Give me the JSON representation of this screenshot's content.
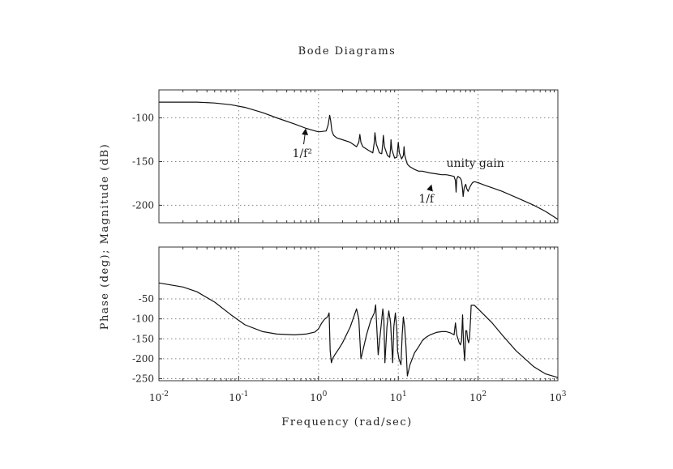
{
  "chart_data": {
    "type": "line",
    "title": "Bode Diagrams",
    "ylabel": "Phase (deg); Magnitude (dB)",
    "xlabel": "Frequency (rad/sec)",
    "x_scale": "log",
    "xlim": [
      0.01,
      1000
    ],
    "x_ticks": [
      {
        "value": 0.01,
        "base": "10",
        "exp": "-2"
      },
      {
        "value": 0.1,
        "base": "10",
        "exp": "-1"
      },
      {
        "value": 1,
        "base": "10",
        "exp": "0"
      },
      {
        "value": 10,
        "base": "10",
        "exp": "1"
      },
      {
        "value": 100,
        "base": "10",
        "exp": "2"
      },
      {
        "value": 1000,
        "base": "10",
        "exp": "3"
      }
    ],
    "grid": true,
    "panels": [
      {
        "name": "magnitude",
        "ylim": [
          -220,
          -68
        ],
        "yticks": [
          -100,
          -150,
          -200
        ],
        "ytick_labels": [
          "-100",
          "-150",
          "-200"
        ],
        "annotations": [
          {
            "text": "1/f²",
            "label_at": [
              0.47,
              -145
            ],
            "arrow_to": [
              0.69,
              -113
            ]
          },
          {
            "text": "1/f",
            "label_at": [
              18,
              -197
            ],
            "arrow_to": [
              26,
              -177
            ]
          },
          {
            "text": "unity  gain",
            "label_at": [
              40,
              -156
            ]
          }
        ],
        "series": [
          {
            "x": [
              0.01,
              0.02,
              0.03,
              0.05,
              0.08,
              0.12,
              0.2,
              0.3,
              0.5,
              0.7,
              1.0,
              1.25,
              1.32,
              1.38,
              1.42,
              1.47,
              1.55,
              1.7,
              2.0,
              2.5,
              3.0,
              3.2,
              3.3,
              3.4,
              3.6,
              4.2,
              4.8,
              5.0,
              5.1,
              5.3,
              5.8,
              6.2,
              6.4,
              6.5,
              6.7,
              7.3,
              7.8,
              8.0,
              8.1,
              8.3,
              9.0,
              9.6,
              9.8,
              10.0,
              10.3,
              11.0,
              11.6,
              11.8,
              12.0,
              12.5,
              13.0,
              14.0,
              16.0,
              18.0,
              20.0,
              25.0,
              30.0,
              35.0,
              40.0,
              45.0,
              50.0,
              52.0,
              53.0,
              54.0,
              56.0,
              60.0,
              62.0,
              64.0,
              65.0,
              67.0,
              70.0,
              72.0,
              75.0,
              80.0,
              85.0,
              90.0,
              100.0,
              120.0,
              150.0,
              200.0,
              300.0,
              500.0,
              700.0,
              1000.0
            ],
            "y": [
              -82,
              -82,
              -82,
              -83,
              -85,
              -88,
              -94,
              -100,
              -107,
              -112,
              -116,
              -115,
              -108,
              -97,
              -103,
              -115,
              -120,
              -123,
              -125,
              -128,
              -133,
              -128,
              -119,
              -128,
              -133,
              -137,
              -140,
              -128,
              -117,
              -130,
              -140,
              -141,
              -129,
              -120,
              -133,
              -143,
              -145,
              -135,
              -125,
              -136,
              -146,
              -145,
              -137,
              -128,
              -140,
              -147,
              -143,
              -133,
              -142,
              -148,
              -153,
              -156,
              -159,
              -161,
              -161,
              -163,
              -164,
              -165,
              -165,
              -166,
              -167,
              -172,
              -185,
              -170,
              -167,
              -169,
              -172,
              -182,
              -190,
              -180,
              -176,
              -181,
              -184,
              -178,
              -174,
              -173,
              -174,
              -177,
              -180,
              -184,
              -191,
              -200,
              -207,
              -216
            ]
          }
        ]
      },
      {
        "name": "phase",
        "ylim": [
          -255,
          80
        ],
        "yticks": [
          -50,
          -100,
          -150,
          -200,
          -250
        ],
        "ytick_labels": [
          "-50",
          "-100",
          "-150",
          "-200",
          "-250"
        ],
        "series": [
          {
            "x": [
              0.01,
              0.02,
              0.03,
              0.05,
              0.08,
              0.12,
              0.2,
              0.3,
              0.5,
              0.7,
              0.9,
              1.0,
              1.1,
              1.2,
              1.3,
              1.36,
              1.4,
              1.45,
              1.5,
              1.6,
              1.8,
              2.0,
              2.5,
              3.0,
              3.2,
              3.4,
              3.5,
              3.6,
              4.0,
              4.5,
              5.0,
              5.2,
              5.4,
              5.6,
              6.0,
              6.4,
              6.6,
              6.8,
              7.2,
              7.6,
              8.0,
              8.2,
              8.5,
              8.8,
              9.2,
              9.6,
              9.8,
              10.2,
              10.8,
              11.2,
              11.6,
              12.0,
              12.5,
              13.0,
              14.0,
              16.0,
              18.0,
              20.0,
              22.0,
              25.0,
              30.0,
              35.0,
              40.0,
              45.0,
              50.0,
              52.0,
              54.0,
              56.0,
              58.0,
              60.0,
              62.0,
              64.0,
              66.0,
              68.0,
              70.0,
              72.0,
              74.0,
              76.0,
              78.0,
              80.0,
              82.0,
              90.0,
              100.0,
              150.0,
              200.0,
              300.0,
              500.0,
              700.0,
              1000.0
            ],
            "y": [
              -10,
              -20,
              -32,
              -58,
              -90,
              -115,
              -132,
              -138,
              -140,
              -138,
              -133,
              -125,
              -110,
              -100,
              -95,
              -85,
              -180,
              -210,
              -200,
              -190,
              -175,
              -160,
              -120,
              -75,
              -100,
              -200,
              -190,
              -180,
              -140,
              -105,
              -85,
              -65,
              -130,
              -190,
              -130,
              -75,
              -100,
              -210,
              -120,
              -80,
              -110,
              -150,
              -210,
              -120,
              -85,
              -130,
              -180,
              -200,
              -215,
              -140,
              -95,
              -120,
              -170,
              -243,
              -215,
              -185,
              -170,
              -155,
              -147,
              -140,
              -134,
              -132,
              -132,
              -135,
              -140,
              -110,
              -140,
              -150,
              -160,
              -165,
              -155,
              -90,
              -170,
              -205,
              -130,
              -130,
              -150,
              -160,
              -150,
              -110,
              -66,
              -66,
              -75,
              -110,
              -140,
              -180,
              -220,
              -238,
              -247
            ]
          }
        ]
      }
    ]
  }
}
